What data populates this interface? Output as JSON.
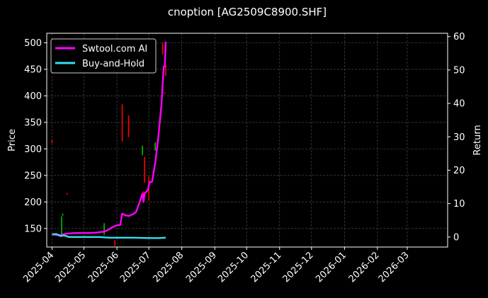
{
  "chart_data": {
    "type": "line",
    "title": "cnoption [AG2509C8900.SHF]",
    "ylabel": "Price",
    "y2label": "Return",
    "xlim": [
      "2025-03-27",
      "2026-04-08"
    ],
    "ylim": [
      115,
      518
    ],
    "y2lim": [
      -3,
      61
    ],
    "grid": true,
    "legend_position": "top-left",
    "x_tick_labels": [
      "2025-04",
      "2025-05",
      "2025-06",
      "2025-07",
      "2025-08",
      "2025-09",
      "2025-10",
      "2025-11",
      "2025-12",
      "2026-01",
      "2026-02",
      "2026-03"
    ],
    "y_ticks": [
      150,
      200,
      250,
      300,
      350,
      400,
      450,
      500
    ],
    "y2_ticks": [
      0,
      10,
      20,
      30,
      40,
      50,
      60
    ],
    "series": [
      {
        "name": "Swtool.com AI",
        "color": "#ff00ff",
        "axis": "right",
        "points": [
          [
            "2025-04-01",
            0.8
          ],
          [
            "2025-04-07",
            0.5
          ],
          [
            "2025-04-10",
            0.7
          ],
          [
            "2025-04-15",
            1.0
          ],
          [
            "2025-04-22",
            1.2
          ],
          [
            "2025-05-06",
            1.2
          ],
          [
            "2025-05-12",
            1.3
          ],
          [
            "2025-05-20",
            1.6
          ],
          [
            "2025-05-24",
            2.2
          ],
          [
            "2025-05-28",
            3.0
          ],
          [
            "2025-06-01",
            3.5
          ],
          [
            "2025-06-04",
            3.6
          ],
          [
            "2025-06-06",
            7.0
          ],
          [
            "2025-06-09",
            6.5
          ],
          [
            "2025-06-12",
            6.3
          ],
          [
            "2025-06-16",
            6.8
          ],
          [
            "2025-06-19",
            7.5
          ],
          [
            "2025-06-23",
            11.0
          ],
          [
            "2025-06-25",
            13.0
          ],
          [
            "2025-06-26",
            10.5
          ],
          [
            "2025-06-27",
            13.0
          ],
          [
            "2025-06-30",
            14.0
          ],
          [
            "2025-07-01",
            15.5
          ],
          [
            "2025-07-02",
            16.5
          ],
          [
            "2025-07-04",
            16.5
          ],
          [
            "2025-07-07",
            22.0
          ],
          [
            "2025-07-10",
            30.0
          ],
          [
            "2025-07-13",
            40.0
          ],
          [
            "2025-07-15",
            51.0
          ],
          [
            "2025-07-16",
            51.0
          ],
          [
            "2025-07-17",
            58.5
          ]
        ]
      },
      {
        "name": "Buy-and-Hold",
        "color": "#33e0f0",
        "axis": "right",
        "points": [
          [
            "2025-04-01",
            0.8
          ],
          [
            "2025-04-05",
            0.9
          ],
          [
            "2025-04-09",
            0.3
          ],
          [
            "2025-04-12",
            0.5
          ],
          [
            "2025-04-17",
            0.0
          ],
          [
            "2025-05-01",
            0.0
          ],
          [
            "2025-05-15",
            0.0
          ],
          [
            "2025-05-25",
            -0.2
          ],
          [
            "2025-06-15",
            -0.2
          ],
          [
            "2025-07-01",
            -0.3
          ],
          [
            "2025-07-10",
            -0.3
          ],
          [
            "2025-07-17",
            -0.2
          ]
        ]
      }
    ],
    "candles": [
      {
        "date": "2025-04-01",
        "low": 311,
        "high": 318,
        "color": "#ff0000"
      },
      {
        "date": "2025-04-10",
        "low": 134,
        "high": 173,
        "color": "#00c000"
      },
      {
        "date": "2025-04-11",
        "low": 174,
        "high": 178,
        "color": "#00c000"
      },
      {
        "date": "2025-04-15",
        "low": 214,
        "high": 217,
        "color": "#ff0000"
      },
      {
        "date": "2025-05-20",
        "low": 138,
        "high": 160,
        "color": "#00c000"
      },
      {
        "date": "2025-05-30",
        "low": 117,
        "high": 128,
        "color": "#ff0000"
      },
      {
        "date": "2025-06-06",
        "low": 314,
        "high": 384,
        "color": "#ff0000"
      },
      {
        "date": "2025-06-12",
        "low": 322,
        "high": 363,
        "color": "#ff0000"
      },
      {
        "date": "2025-06-25",
        "low": 288,
        "high": 306,
        "color": "#00c000"
      },
      {
        "date": "2025-06-26",
        "low": 199,
        "high": 220,
        "color": "#ff0000"
      },
      {
        "date": "2025-06-27",
        "low": 236,
        "high": 285,
        "color": "#ff0000"
      },
      {
        "date": "2025-07-01",
        "low": 203,
        "high": 248,
        "color": "#ff0000"
      },
      {
        "date": "2025-07-07",
        "low": 297,
        "high": 312,
        "color": "#00c000"
      },
      {
        "date": "2025-07-14",
        "low": 478,
        "high": 500,
        "color": "#ff0000"
      },
      {
        "date": "2025-07-16",
        "low": 404,
        "high": 407,
        "color": "#ff0000"
      },
      {
        "date": "2025-07-17",
        "low": 438,
        "high": 458,
        "color": "#ff0000"
      }
    ]
  }
}
